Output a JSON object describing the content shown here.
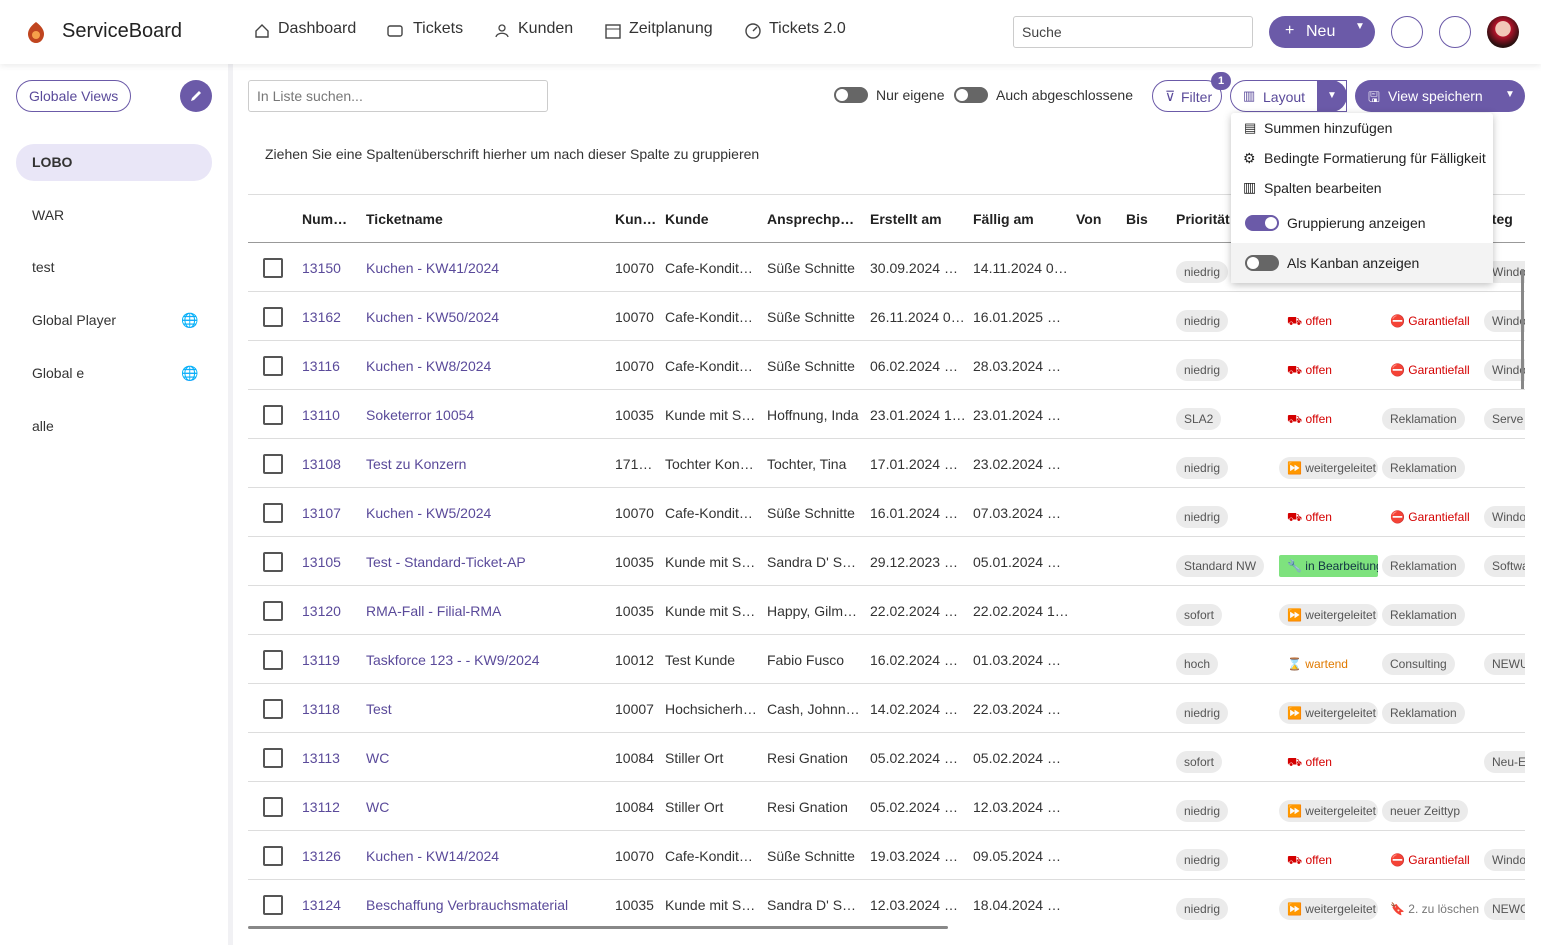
{
  "header": {
    "brand": "ServiceBoard",
    "nav": [
      "Dashboard",
      "Tickets",
      "Kunden",
      "Zeitplanung",
      "Tickets 2.0"
    ],
    "search": "Suche",
    "new_button": "Neu"
  },
  "sidebar": {
    "global_views": "Globale Views",
    "views": [
      "LOBO",
      "WAR",
      "test",
      "Global Player",
      "Global e",
      "alle"
    ]
  },
  "toolbar": {
    "list_search": "In Liste suchen...",
    "toggle_own": "Nur eigene",
    "toggle_closed": "Auch abgeschlossene",
    "filter": "Filter",
    "filter_badge": "1",
    "layout": "Layout",
    "save_view": "View speichern"
  },
  "layout_menu": [
    "Summen hinzufügen",
    "Bedingte Formatierung für Fälligkeit",
    "Spalten bearbeiten",
    "Gruppierung anzeigen",
    "Als Kanban anzeigen"
  ],
  "group_hint": "Ziehen Sie eine Spaltenüberschrift hierher um nach dieser Spalte zu gruppieren",
  "table": {
    "columns": [
      "Num…",
      "Ticketname",
      "Kun…",
      "Kunde",
      "Ansprechp…",
      "Erstellt am",
      "Fällig am",
      "Von",
      "Bis",
      "Priorität",
      "ateg"
    ],
    "rows": [
      [
        "13150",
        "Kuchen - KW41/2024",
        "10070",
        "Cafe-Kondit…",
        "Süße Schnitte",
        "30.09.2024 …",
        "14.11.2024 0…",
        "niedrig",
        null,
        null,
        "Windo"
      ],
      [
        "13162",
        "Kuchen - KW50/2024",
        "10070",
        "Cafe-Kondit…",
        "Süße Schnitte",
        "26.11.2024 0…",
        "16.01.2025 …",
        "niedrig",
        "offen",
        "Garantiefall",
        "Windo"
      ],
      [
        "13116",
        "Kuchen - KW8/2024",
        "10070",
        "Cafe-Kondit…",
        "Süße Schnitte",
        "06.02.2024 …",
        "28.03.2024 …",
        "niedrig",
        "offen",
        "Garantiefall",
        "Windo"
      ],
      [
        "13110",
        "Soketerror 10054",
        "10035",
        "Kunde mit S…",
        "Hoffnung, Inda",
        "23.01.2024 1…",
        "23.01.2024 …",
        "SLA2",
        "offen",
        "Reklamation",
        "Serve"
      ],
      [
        "13108",
        "Test zu Konzern",
        "171…",
        "Tochter Kon…",
        "Tochter, Tina",
        "17.01.2024 …",
        "23.02.2024 …",
        "niedrig",
        "weitergeleitet",
        "Reklamation",
        null
      ],
      [
        "13107",
        "Kuchen - KW5/2024",
        "10070",
        "Cafe-Kondit…",
        "Süße Schnitte",
        "16.01.2024 …",
        "07.03.2024 …",
        "niedrig",
        "offen",
        "Garantiefall",
        "Windo"
      ],
      [
        "13105",
        "Test - Standard-Ticket-AP",
        "10035",
        "Kunde mit S…",
        "Sandra D' S…",
        "29.12.2023 …",
        "05.01.2024 …",
        "Standard NW",
        "in Bearbeitung",
        "Reklamation",
        "Softwa"
      ],
      [
        "13120",
        "RMA-Fall - Filial-RMA",
        "10035",
        "Kunde mit S…",
        "Happy, Gilm…",
        "22.02.2024 …",
        "22.02.2024 1…",
        "sofort",
        "weitergeleitet",
        "Reklamation",
        null
      ],
      [
        "13119",
        "Taskforce 123 - - KW9/2024",
        "10012",
        "Test Kunde",
        "Fabio Fusco",
        "16.02.2024 …",
        "01.03.2024 …",
        "hoch",
        "wartend",
        "Consulting",
        "NEWU"
      ],
      [
        "13118",
        "Test",
        "10007",
        "Hochsicherh…",
        "Cash, Johnn…",
        "14.02.2024 …",
        "22.03.2024 …",
        "niedrig",
        "weitergeleitet",
        "Reklamation",
        null
      ],
      [
        "13113",
        "WC",
        "10084",
        "Stiller Ort",
        "Resi Gnation",
        "05.02.2024 …",
        "05.02.2024 …",
        "sofort",
        "offen",
        null,
        "Neu-E"
      ],
      [
        "13112",
        "WC",
        "10084",
        "Stiller Ort",
        "Resi Gnation",
        "05.02.2024 …",
        "12.03.2024 …",
        "niedrig",
        "weitergeleitet",
        "neuer Zeittyp",
        null
      ],
      [
        "13126",
        "Kuchen - KW14/2024",
        "10070",
        "Cafe-Kondit…",
        "Süße Schnitte",
        "19.03.2024 …",
        "09.05.2024 …",
        "niedrig",
        "offen",
        "Garantiefall",
        "Windo"
      ],
      [
        "13124",
        "Beschaffung Verbrauchsmaterial",
        "10035",
        "Kunde mit S…",
        "Sandra D' S…",
        "12.03.2024 …",
        "18.04.2024 …",
        "niedrig",
        "weitergeleitet",
        "2. zu löschen",
        "NEWC"
      ]
    ]
  }
}
